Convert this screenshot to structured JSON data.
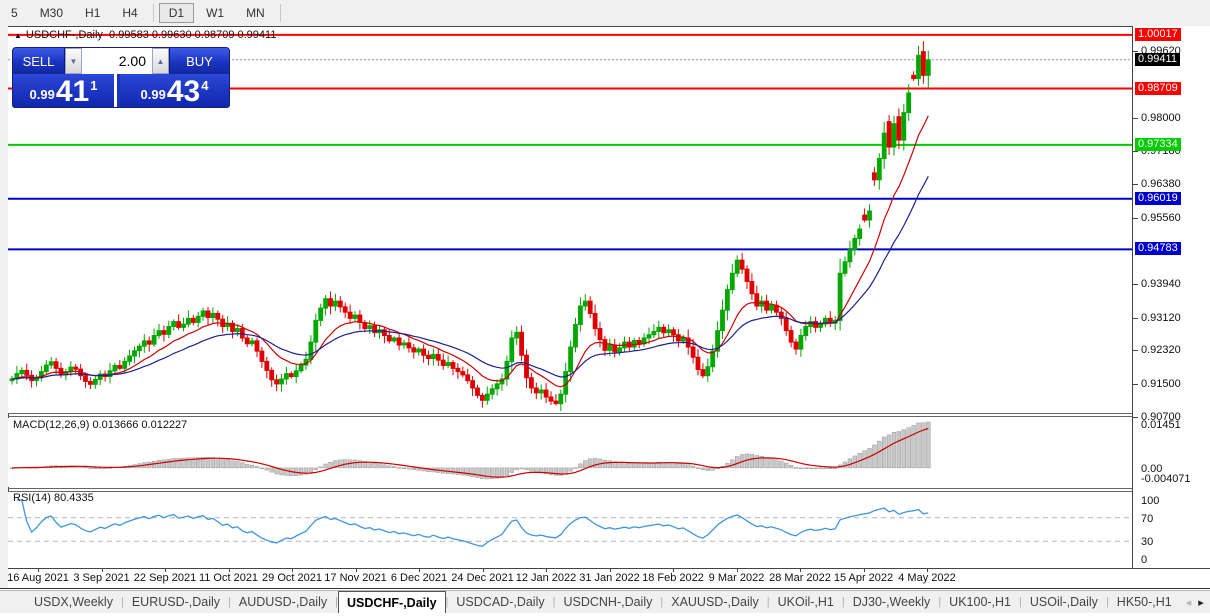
{
  "toolbar": {
    "items": [
      "5",
      "M30",
      "H1",
      "H4",
      "D1",
      "W1",
      "MN"
    ],
    "active": "D1"
  },
  "trade_panel": {
    "sell_label": "SELL",
    "buy_label": "BUY",
    "volume": "2.00",
    "spin_down": "▼",
    "spin_up": "▲",
    "sell_price": {
      "prefix": "0.99",
      "big": "41",
      "pip": "1"
    },
    "buy_price": {
      "prefix": "0.99",
      "big": "43",
      "pip": "4"
    }
  },
  "main_chart": {
    "marker": "▲",
    "title": "USDCHF-,Daily",
    "ohlc_text": "0.99583 0.99630 0.98709 0.99411"
  },
  "indicators": {
    "macd_label": "MACD(12,26,9) 0.013666 0.012227",
    "rsi_label": "RSI(14) 80.4335"
  },
  "price_axis": {
    "ticks": [
      "0.99620",
      "0.98000",
      "0.97180",
      "0.96380",
      "0.95560",
      "0.93940",
      "0.93120",
      "0.92320",
      "0.91500",
      "0.90700"
    ],
    "current_badge": {
      "text": "0.99411",
      "bg": "#000000"
    },
    "macd_ticks": [
      "0.01451",
      "0.00",
      "-0.004071"
    ],
    "rsi_ticks": [
      "100",
      "70",
      "30",
      "0"
    ]
  },
  "date_axis": [
    "16 Aug 2021",
    "3 Sep 2021",
    "22 Sep 2021",
    "11 Oct 2021",
    "29 Oct 2021",
    "17 Nov 2021",
    "6 Dec 2021",
    "24 Dec 2021",
    "12 Jan 2022",
    "31 Jan 2022",
    "18 Feb 2022",
    "9 Mar 2022",
    "28 Mar 2022",
    "15 Apr 2022",
    "4 May 2022"
  ],
  "tabs": {
    "items": [
      "USDX,Weekly",
      "EURUSD-,Daily",
      "AUDUSD-,Daily",
      "USDCHF-,Daily",
      "USDCAD-,Daily",
      "USDCNH-,Daily",
      "XAUUSD-,Daily",
      "UKOil-,H1",
      "DJ30-,Weekly",
      "UK100-,H1",
      "USOil-,Daily",
      "HK50-,H1"
    ],
    "active": "USDCHF-,Daily",
    "nav_left": "◂",
    "nav_right": "▸"
  },
  "chart_data": {
    "type": "candlestick",
    "symbol": "USDCHF",
    "timeframe": "Daily",
    "y_range": [
      0.9079,
      1.0021
    ],
    "up_color": "#00a800",
    "down_color": "#e00000",
    "levels": [
      {
        "price": 1.00017,
        "color": "#ff0000"
      },
      {
        "price": 0.98709,
        "color": "#ff0000"
      },
      {
        "price": 0.97334,
        "color": "#00cc00"
      },
      {
        "price": 0.96019,
        "color": "#0000cc"
      },
      {
        "price": 0.94783,
        "color": "#0000cc"
      }
    ],
    "current_price": 0.99411,
    "first_open": 0.9158,
    "closes": [
      0.9162,
      0.9175,
      0.9183,
      0.9171,
      0.9158,
      0.9165,
      0.918,
      0.9196,
      0.9204,
      0.9188,
      0.9172,
      0.918,
      0.9191,
      0.9186,
      0.917,
      0.9156,
      0.9149,
      0.9161,
      0.9174,
      0.9168,
      0.9182,
      0.9195,
      0.9188,
      0.9205,
      0.9218,
      0.9231,
      0.9242,
      0.9255,
      0.9247,
      0.9268,
      0.928,
      0.9271,
      0.929,
      0.9302,
      0.9288,
      0.9296,
      0.931,
      0.93,
      0.9315,
      0.9328,
      0.9312,
      0.9322,
      0.9308,
      0.929,
      0.9298,
      0.9278,
      0.9285,
      0.9262,
      0.9248,
      0.9255,
      0.923,
      0.9205,
      0.9183,
      0.916,
      0.915,
      0.9162,
      0.9175,
      0.9168,
      0.9182,
      0.9196,
      0.921,
      0.9252,
      0.9305,
      0.9335,
      0.9358,
      0.934,
      0.9352,
      0.9338,
      0.9325,
      0.931,
      0.9318,
      0.93,
      0.9285,
      0.9292,
      0.9275,
      0.9282,
      0.9268,
      0.9255,
      0.9262,
      0.9245,
      0.925,
      0.9238,
      0.9228,
      0.9235,
      0.922,
      0.9212,
      0.9222,
      0.9208,
      0.9195,
      0.9202,
      0.9188,
      0.918,
      0.9172,
      0.9158,
      0.914,
      0.9122,
      0.911,
      0.9125,
      0.9138,
      0.915,
      0.9162,
      0.9205,
      0.9262,
      0.9276,
      0.922,
      0.9165,
      0.914,
      0.9128,
      0.9135,
      0.9118,
      0.9108,
      0.9102,
      0.9125,
      0.918,
      0.924,
      0.9295,
      0.934,
      0.9352,
      0.9322,
      0.9285,
      0.9258,
      0.9232,
      0.9245,
      0.9228,
      0.9238,
      0.9252,
      0.924,
      0.9256,
      0.9248,
      0.9262,
      0.927,
      0.9278,
      0.9288,
      0.9275,
      0.9282,
      0.927,
      0.9255,
      0.9262,
      0.924,
      0.9215,
      0.9185,
      0.917,
      0.9192,
      0.923,
      0.928,
      0.933,
      0.938,
      0.942,
      0.9452,
      0.943,
      0.94,
      0.937,
      0.934,
      0.9352,
      0.933,
      0.9342,
      0.9325,
      0.931,
      0.928,
      0.9252,
      0.9235,
      0.9268,
      0.929,
      0.9302,
      0.9288,
      0.9296,
      0.931,
      0.9298,
      0.9305,
      0.942,
      0.9448,
      0.9478,
      0.9505,
      0.9528,
      0.955,
      0.9572,
      0.9648,
      0.97,
      0.9762,
      0.9728,
      0.9785,
      0.9745,
      0.9812,
      0.986,
      0.9895,
      0.9952,
      0.9903,
      0.9941
    ],
    "open_overrides": {
      "174": 0.9562,
      "176": 0.9665,
      "179": 0.979,
      "181": 0.9802,
      "184": 0.9903,
      "186": 0.9961
    },
    "last_candle": {
      "open": 0.99583,
      "high": 0.9963,
      "low": 0.98709,
      "close": 0.99411
    },
    "overlays": [
      {
        "name": "ema-fast",
        "period": 12,
        "color": "#cc0000"
      },
      {
        "name": "ema-slow",
        "period": 26,
        "color": "#202090"
      }
    ],
    "macd": {
      "fast": 12,
      "slow": 26,
      "signal": 9,
      "value": 0.013666,
      "signal_value": 0.012227,
      "histogram_color": "#c9c9c9",
      "histogram_border": "#9a9a9a",
      "line_color": "#cc0000"
    },
    "rsi": {
      "period": 14,
      "value": 80.4335,
      "levels": [
        70,
        30
      ],
      "color": "#3e96e0"
    }
  }
}
